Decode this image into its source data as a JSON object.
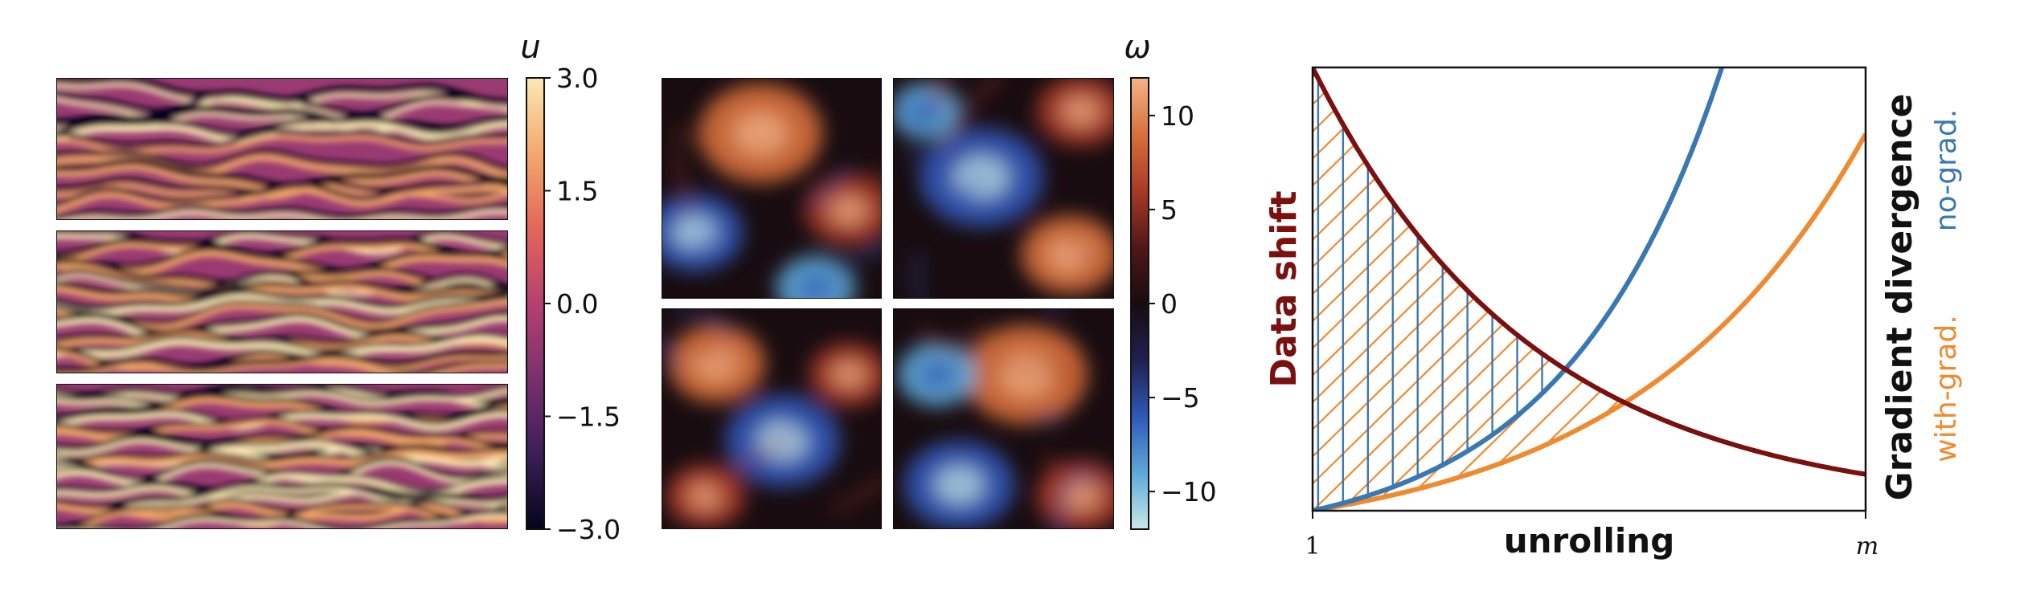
{
  "panel_a": {
    "symbol": "u",
    "ticks": [
      "3.0",
      "1.5",
      "0.0",
      "−1.5",
      "−3.0"
    ],
    "tick_values": [
      3.0,
      1.5,
      0.0,
      -1.5,
      -3.0
    ],
    "range": [
      -3.0,
      3.0
    ],
    "colors": [
      "#03051a",
      "#3b1f58",
      "#7b2f6e",
      "#b64070",
      "#e4665a",
      "#f4a86c",
      "#fbe8b4"
    ]
  },
  "panel_b": {
    "symbol": "ω",
    "ticks": [
      "10",
      "5",
      "0",
      "−5",
      "−10"
    ],
    "tick_values": [
      10,
      5,
      0,
      -5,
      -10
    ],
    "range": [
      -12,
      12
    ],
    "colors": [
      "#c8e8e8",
      "#5ea8d8",
      "#3058b8",
      "#202050",
      "#180c10",
      "#501818",
      "#a83a28",
      "#d8703c",
      "#f4b488"
    ]
  },
  "panel_c": {
    "ylabel_left": "Data shift",
    "ylabel_right": "Gradient  divergence",
    "legend_no_grad": "no-grad.",
    "legend_with_grad": "with-grad.",
    "xlabel": "unrolling",
    "xtick_start": "1",
    "xtick_end": "m",
    "colors": {
      "data_shift": "#7a1010",
      "no_grad": "#3a78b4",
      "with_grad": "#f08a30"
    }
  },
  "chart_data": [
    {
      "type": "heatmap",
      "description_from_figure": "three stacked space-time fields, colorbar u",
      "colorbar_label": "u",
      "colorbar_ticks": [
        3.0,
        1.5,
        0.0,
        -1.5,
        -3.0
      ],
      "zlim": [
        -3.0,
        3.0
      ],
      "count": 3
    },
    {
      "type": "heatmap",
      "colorbar_label": "ω",
      "colorbar_ticks": [
        10,
        5,
        0,
        -5,
        -10
      ],
      "zlim": [
        -12,
        12
      ],
      "count": 4
    },
    {
      "type": "line",
      "xlabel": "unrolling",
      "xticks": [
        "1",
        "m"
      ],
      "xlim": [
        0,
        1
      ],
      "ylim": [
        0,
        1
      ],
      "series": [
        {
          "name": "Data shift",
          "x": [
            0,
            0.1,
            0.2,
            0.3,
            0.4,
            0.5,
            0.6,
            0.7,
            0.8,
            0.9,
            1.0
          ],
          "values": [
            1.0,
            0.8,
            0.64,
            0.51,
            0.4,
            0.32,
            0.25,
            0.19,
            0.14,
            0.11,
            0.08
          ]
        },
        {
          "name": "no-grad.",
          "x": [
            0,
            0.1,
            0.2,
            0.3,
            0.4,
            0.5,
            0.6,
            0.7,
            0.74
          ],
          "values": [
            0.0,
            0.05,
            0.12,
            0.21,
            0.33,
            0.46,
            0.62,
            0.83,
            1.0
          ]
        },
        {
          "name": "with-grad.",
          "x": [
            0,
            0.1,
            0.2,
            0.3,
            0.4,
            0.5,
            0.6,
            0.7,
            0.8,
            0.9,
            1.0
          ],
          "values": [
            0.0,
            0.02,
            0.05,
            0.09,
            0.13,
            0.19,
            0.26,
            0.35,
            0.47,
            0.64,
            0.85
          ]
        }
      ]
    }
  ]
}
